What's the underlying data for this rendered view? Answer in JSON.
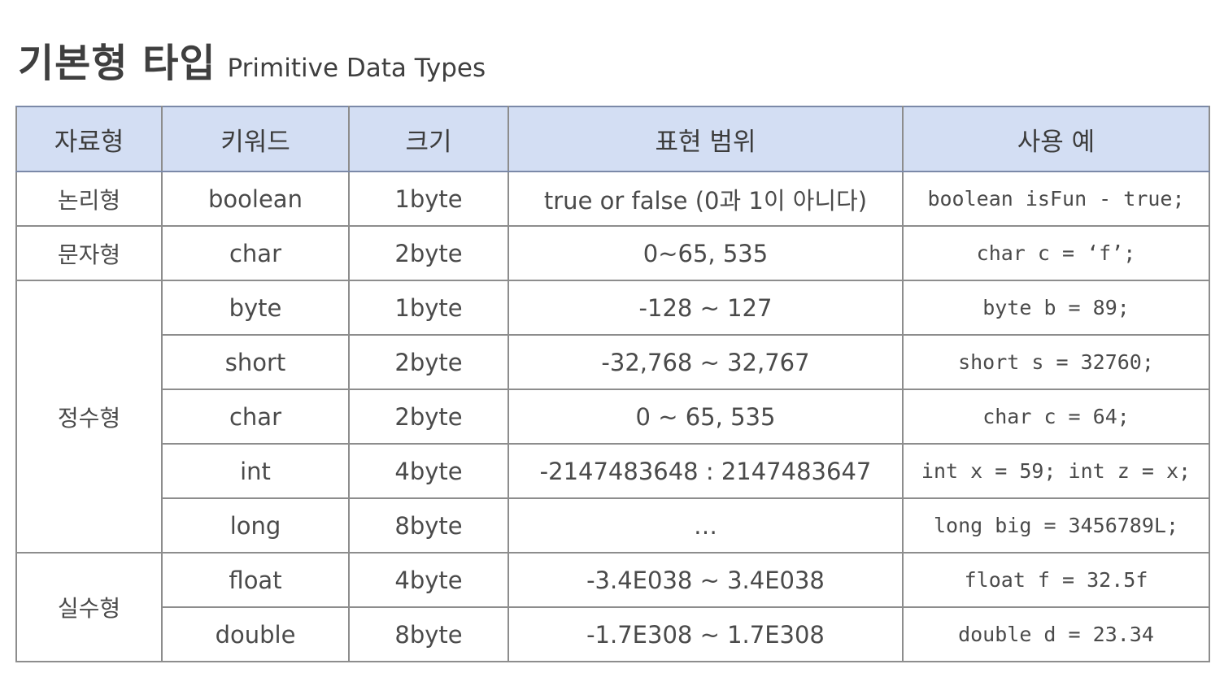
{
  "title": {
    "ko": "기본형 타입",
    "en": "Primitive Data Types"
  },
  "table": {
    "headers": [
      "자료형",
      "키워드",
      "크기",
      "표현 범위",
      "사용 예"
    ],
    "groups": [
      {
        "category": "논리형",
        "rows": [
          {
            "keyword": "boolean",
            "size": "1byte",
            "range": "true or false (0과 1이 아니다)",
            "example": "boolean isFun - true;"
          }
        ]
      },
      {
        "category": "문자형",
        "rows": [
          {
            "keyword": "char",
            "size": "2byte",
            "range": "0~65, 535",
            "example": "char c = ‘f’;"
          }
        ]
      },
      {
        "category": "정수형",
        "rows": [
          {
            "keyword": "byte",
            "size": "1byte",
            "range": "-128 ~ 127",
            "example": "byte b = 89;"
          },
          {
            "keyword": "short",
            "size": "2byte",
            "range": "-32,768 ~ 32,767",
            "example": "short s = 32760;"
          },
          {
            "keyword": "char",
            "size": "2byte",
            "range": "0 ~ 65, 535",
            "example": "char c = 64;"
          },
          {
            "keyword": "int",
            "size": "4byte",
            "range": "-2147483648 : 2147483647",
            "example": "int x = 59; int z = x;"
          },
          {
            "keyword": "long",
            "size": "8byte",
            "range": "…",
            "example": "long big = 3456789L;"
          }
        ]
      },
      {
        "category": "실수형",
        "rows": [
          {
            "keyword": "float",
            "size": "4byte",
            "range": "-3.4E038 ~ 3.4E038",
            "example": "float f = 32.5f"
          },
          {
            "keyword": "double",
            "size": "8byte",
            "range": "-1.7E308 ~ 1.7E308",
            "example": "double d = 23.34"
          }
        ]
      }
    ]
  }
}
